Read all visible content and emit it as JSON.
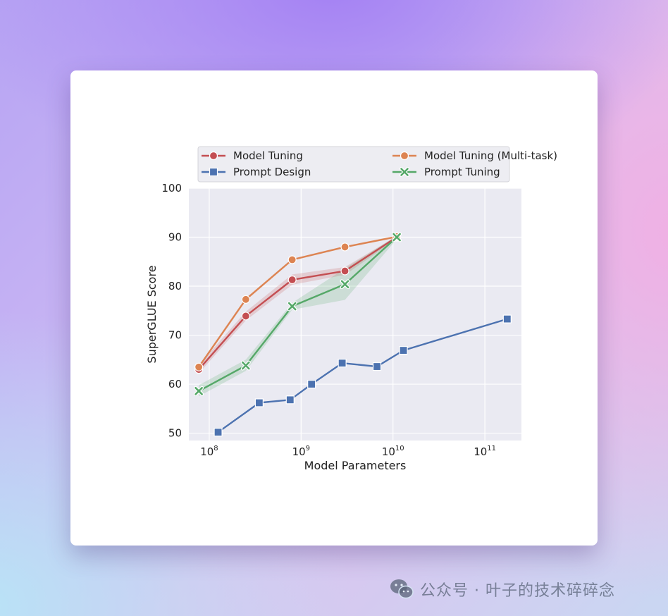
{
  "watermark": {
    "text": "公众号 · 叶子的技术碎碎念",
    "icon": "wechat-icon"
  },
  "chart_data": {
    "type": "line",
    "title": "",
    "xlabel": "Model Parameters",
    "ylabel": "SuperGLUE Score",
    "xscale": "log",
    "xlim": [
      60000000,
      250000000000
    ],
    "ylim": [
      48.5,
      100
    ],
    "xticks": [
      {
        "value": 100000000,
        "base": "10",
        "exp": "8"
      },
      {
        "value": 1000000000,
        "base": "10",
        "exp": "9"
      },
      {
        "value": 10000000000,
        "base": "10",
        "exp": "10"
      },
      {
        "value": 100000000000,
        "base": "10",
        "exp": "11"
      }
    ],
    "yticks": [
      50,
      60,
      70,
      80,
      90,
      100
    ],
    "grid": true,
    "legend_position": "top",
    "series": [
      {
        "name": "Model Tuning",
        "color": "#c44e52",
        "marker": "circle",
        "x": [
          77000000,
          250000000,
          800000000,
          3000000000,
          11000000000
        ],
        "y": [
          63.0,
          73.9,
          81.3,
          83.1,
          90.0
        ],
        "band_low": [
          62.2,
          73.0,
          80.3,
          82.3,
          89.7
        ],
        "band_high": [
          63.9,
          74.8,
          82.4,
          83.9,
          90.2
        ]
      },
      {
        "name": "Model Tuning (Multi-task)",
        "color": "#dd8452",
        "marker": "circle",
        "x": [
          77000000,
          250000000,
          800000000,
          3000000000,
          11000000000
        ],
        "y": [
          63.5,
          77.3,
          85.4,
          88.0,
          90.1
        ],
        "band_low": [
          63.2,
          77.0,
          85.2,
          87.8,
          89.9
        ],
        "band_high": [
          63.8,
          77.6,
          85.6,
          88.2,
          90.3
        ]
      },
      {
        "name": "Prompt Design",
        "color": "#4c72b0",
        "marker": "square",
        "x": [
          125000000,
          350000000,
          760000000,
          1300000000,
          2800000000,
          6700000000,
          13000000000,
          175000000000
        ],
        "y": [
          50.2,
          56.2,
          56.8,
          60.0,
          64.3,
          63.6,
          66.9,
          73.3
        ]
      },
      {
        "name": "Prompt Tuning",
        "color": "#55a868",
        "marker": "x",
        "x": [
          77000000,
          250000000,
          800000000,
          3000000000,
          11000000000
        ],
        "y": [
          58.6,
          63.8,
          75.9,
          80.4,
          90.0
        ],
        "band_low": [
          57.5,
          62.7,
          75.2,
          77.2,
          89.6
        ],
        "band_high": [
          59.8,
          65.0,
          76.6,
          83.6,
          90.3
        ]
      }
    ],
    "legend_order": [
      0,
      2,
      1,
      3
    ]
  }
}
